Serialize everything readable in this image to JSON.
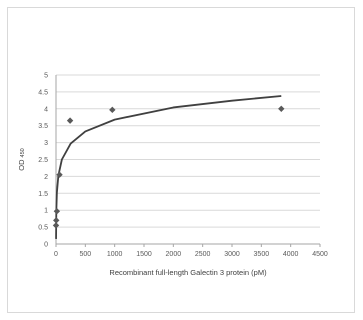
{
  "chart_data": {
    "type": "scatter",
    "title": "",
    "xlabel": "Recombinant full-length Galectin 3 protein (pM)",
    "ylabel": "OD",
    "ylabel_subscript": "450",
    "xlim": [
      0,
      4500
    ],
    "ylim": [
      0,
      5
    ],
    "x_ticks": [
      "0",
      "500",
      "1000",
      "1500",
      "2000",
      "2500",
      "3000",
      "3500",
      "4000",
      "4500"
    ],
    "y_ticks": [
      "0",
      "0.5",
      "1",
      "1.5",
      "2",
      "2.5",
      "3",
      "3.5",
      "4",
      "4.5",
      "5"
    ],
    "grid": "horizontal",
    "legend": "none",
    "series": [
      {
        "values": [
          {
            "x": 0,
            "y": 0.55
          },
          {
            "x": 4,
            "y": 0.7
          },
          {
            "x": 15,
            "y": 0.97
          },
          {
            "x": 60,
            "y": 2.05
          },
          {
            "x": 240,
            "y": 3.65
          },
          {
            "x": 960,
            "y": 3.97
          },
          {
            "x": 3840,
            "y": 4.0
          }
        ]
      }
    ],
    "trendline": {
      "type": "logarithmic",
      "x": [
        1,
        5,
        15,
        40,
        100,
        250,
        500,
        1000,
        2000,
        3000,
        3840
      ],
      "y": [
        0.15,
        0.95,
        1.52,
        2.02,
        2.5,
        2.97,
        3.33,
        3.68,
        4.04,
        4.24,
        4.38
      ]
    },
    "colors": {
      "marker": "#595959",
      "trendline": "#404040",
      "grid": "#d9d9d9",
      "axis": "#a6a6a6"
    }
  }
}
